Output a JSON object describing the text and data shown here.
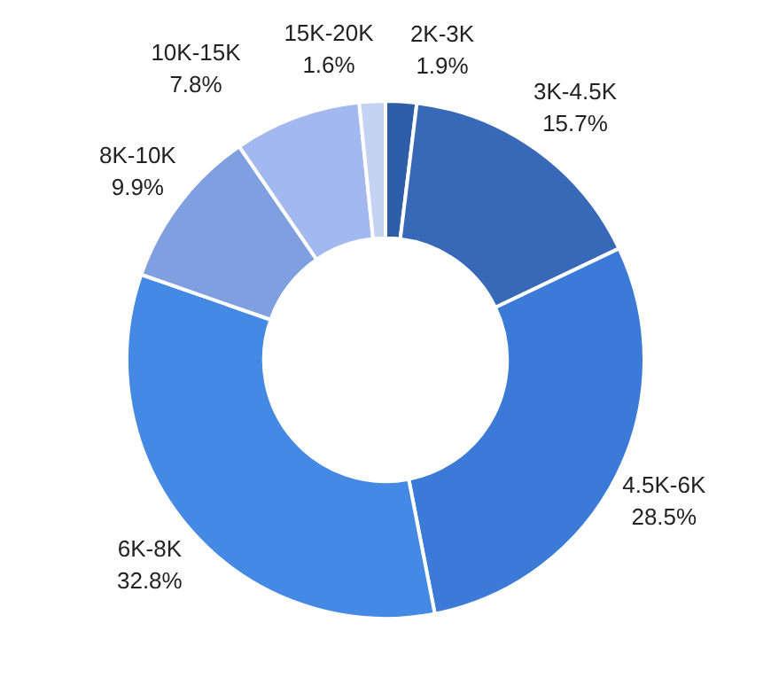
{
  "chart_data": {
    "type": "donut",
    "categories": [
      "2K-3K",
      "3K-4.5K",
      "4.5K-6K",
      "6K-8K",
      "8K-10K",
      "10K-15K",
      "15K-20K"
    ],
    "values": [
      1.9,
      15.7,
      28.5,
      32.8,
      9.9,
      7.8,
      1.6
    ],
    "value_labels": [
      "1.9%",
      "15.7%",
      "28.5%",
      "32.8%",
      "9.9%",
      "7.8%",
      "1.6%"
    ],
    "colors": [
      "#2f5ea8",
      "#3868b8",
      "#3b7ad6",
      "#4489e3",
      "#7f9fe0",
      "#a3b8ee",
      "#c5d3f2"
    ],
    "legend": false
  }
}
